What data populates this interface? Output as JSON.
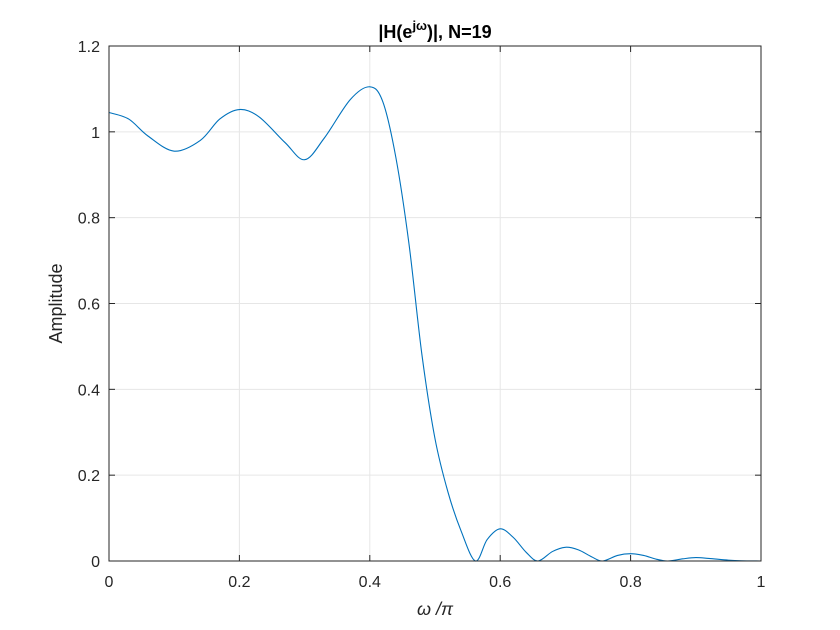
{
  "chart_data": {
    "type": "line",
    "title_parts": {
      "before": "|H(e",
      "superscript": "jω",
      "after": ")|, N=19"
    },
    "xlabel": "ω /π",
    "ylabel": "Amplitude",
    "xlim": [
      0,
      1
    ],
    "ylim": [
      0,
      1.2
    ],
    "xticks": [
      0,
      0.2,
      0.4,
      0.6,
      0.8,
      1
    ],
    "xtick_labels": [
      "0",
      "0.2",
      "0.4",
      "0.6",
      "0.8",
      "1"
    ],
    "yticks": [
      0,
      0.2,
      0.4,
      0.6,
      0.8,
      1,
      1.2
    ],
    "ytick_labels": [
      "0",
      "0.2",
      "0.4",
      "0.6",
      "0.8",
      "1",
      "1.2"
    ],
    "grid": true,
    "series": [
      {
        "color": "#0072bd",
        "x": [
          0,
          0.03,
          0.06,
          0.1,
          0.14,
          0.17,
          0.2,
          0.23,
          0.27,
          0.3,
          0.33,
          0.37,
          0.4,
          0.42,
          0.44,
          0.46,
          0.48,
          0.5,
          0.52,
          0.54,
          0.562,
          0.58,
          0.6,
          0.62,
          0.64,
          0.658,
          0.68,
          0.7,
          0.72,
          0.74,
          0.757,
          0.78,
          0.8,
          0.82,
          0.84,
          0.857,
          0.88,
          0.9,
          0.92,
          0.95,
          0.97,
          1.0
        ],
        "y": [
          1.045,
          1.03,
          0.99,
          0.955,
          0.98,
          1.03,
          1.052,
          1.035,
          0.975,
          0.935,
          0.985,
          1.075,
          1.105,
          1.07,
          0.94,
          0.74,
          0.48,
          0.285,
          0.16,
          0.07,
          0.0,
          0.05,
          0.075,
          0.055,
          0.02,
          0.0,
          0.022,
          0.032,
          0.026,
          0.01,
          0.0,
          0.013,
          0.017,
          0.013,
          0.004,
          0.0,
          0.005,
          0.008,
          0.006,
          0.002,
          0.0005,
          0.0
        ]
      }
    ]
  }
}
